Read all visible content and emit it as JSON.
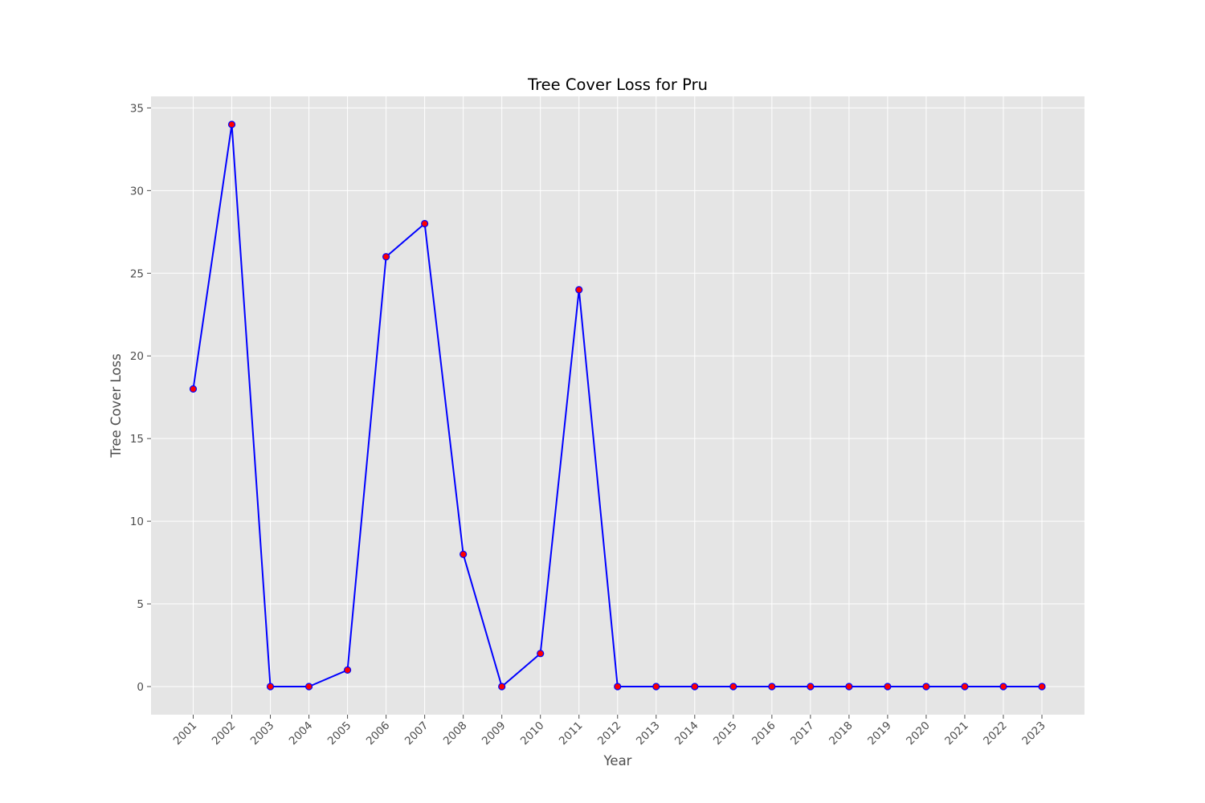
{
  "chart_data": {
    "type": "line",
    "title": "Tree Cover Loss for Pru",
    "xlabel": "Year",
    "ylabel": "Tree Cover Loss",
    "categories": [
      "2001",
      "2002",
      "2003",
      "2004",
      "2005",
      "2006",
      "2007",
      "2008",
      "2009",
      "2010",
      "2011",
      "2012",
      "2013",
      "2014",
      "2015",
      "2016",
      "2017",
      "2018",
      "2019",
      "2020",
      "2021",
      "2022",
      "2023"
    ],
    "series": [
      {
        "values": [
          18,
          34,
          0,
          0,
          1,
          26,
          28,
          8,
          0,
          2,
          24,
          0,
          0,
          0,
          0,
          0,
          0,
          0,
          0,
          0,
          0,
          0,
          0
        ],
        "line_color": "#0000ff",
        "marker_color": "#ff0000",
        "marker_edge_color": "#0000ff"
      }
    ],
    "ylim": [
      -1.7,
      35.7
    ],
    "yticks": [
      0,
      5,
      10,
      15,
      20,
      25,
      30,
      35
    ],
    "grid": true,
    "x_tick_rotation": -45,
    "plot_background": "#e5e5e5",
    "grid_color": "#ffffff"
  }
}
